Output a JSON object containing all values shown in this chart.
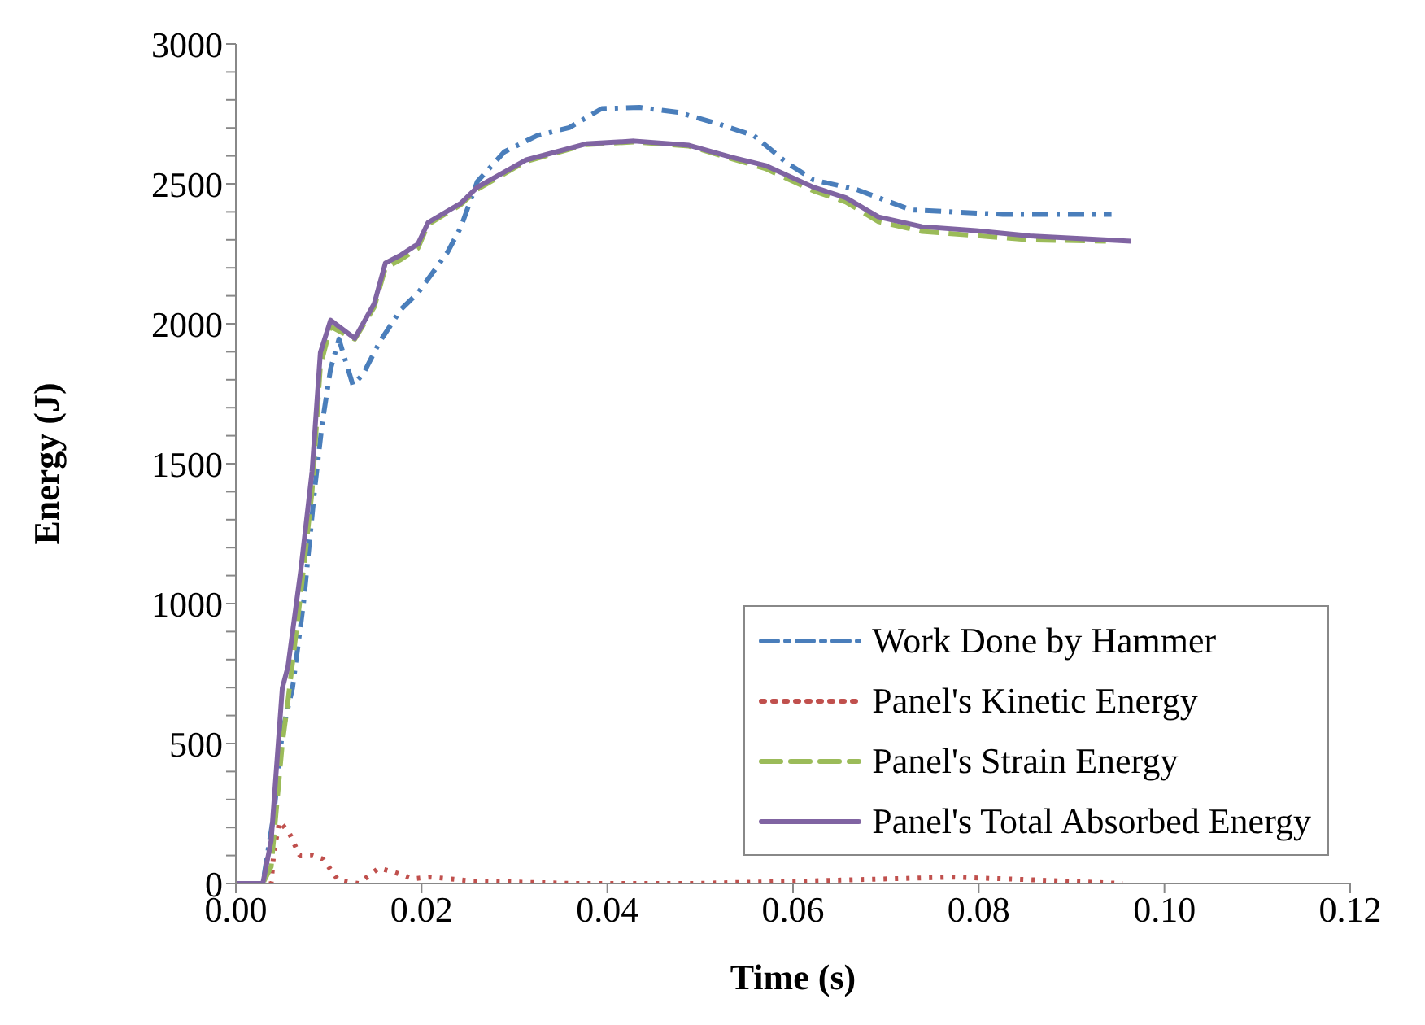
{
  "chart_data": {
    "type": "line",
    "xlabel": "Time (s)",
    "ylabel": "Energy (J)",
    "xlim": [
      0,
      0.12
    ],
    "xticks": [
      {
        "value": 0,
        "label": "0.00"
      },
      {
        "value": 0.02,
        "label": "0.02"
      },
      {
        "value": 0.04,
        "label": "0.04"
      },
      {
        "value": 0.06,
        "label": "0.06"
      },
      {
        "value": 0.08,
        "label": "0.08"
      },
      {
        "value": 0.1,
        "label": "0.10"
      },
      {
        "value": 0.12,
        "label": "0.12"
      }
    ],
    "ylim": [
      0,
      3000
    ],
    "yticks": [
      0,
      {
        "value": 100,
        "label": null
      },
      {
        "value": 200,
        "label": null
      },
      {
        "value": 300,
        "label": null
      },
      {
        "value": 400,
        "label": null
      },
      500,
      {
        "value": 600,
        "label": null
      },
      {
        "value": 700,
        "label": null
      },
      {
        "value": 800,
        "label": null
      },
      {
        "value": 900,
        "label": null
      },
      1000,
      {
        "value": 1100,
        "label": null
      },
      {
        "value": 1200,
        "label": null
      },
      {
        "value": 1300,
        "label": null
      },
      {
        "value": 1400,
        "label": null
      },
      1500,
      {
        "value": 1600,
        "label": null
      },
      {
        "value": 1700,
        "label": null
      },
      {
        "value": 1800,
        "label": null
      },
      {
        "value": 1900,
        "label": null
      },
      2000,
      {
        "value": 2100,
        "label": null
      },
      {
        "value": 2200,
        "label": null
      },
      {
        "value": 2300,
        "label": null
      },
      {
        "value": 2400,
        "label": null
      },
      2500,
      {
        "value": 2600,
        "label": null
      },
      {
        "value": 2700,
        "label": null
      },
      {
        "value": 2800,
        "label": null
      },
      {
        "value": 2900,
        "label": null
      },
      3000
    ],
    "grid": false,
    "legend": "bottom right",
    "marker": "none",
    "series": [
      {
        "name": "Work Done by Hammer",
        "color": "#4a7ebb",
        "line_style": "dashdot",
        "x": [
          0,
          0.0029,
          0.0041,
          0.005,
          0.0061,
          0.0073,
          0.0085,
          0.0093,
          0.0102,
          0.0111,
          0.0126,
          0.0137,
          0.0155,
          0.0178,
          0.0196,
          0.0228,
          0.0242,
          0.026,
          0.0289,
          0.0324,
          0.0359,
          0.0394,
          0.0435,
          0.0476,
          0.0523,
          0.0558,
          0.0593,
          0.0622,
          0.0669,
          0.0727,
          0.0826,
          0.0943
        ],
        "values": [
          0,
          0,
          250,
          541,
          698,
          1006,
          1413,
          1645,
          1839,
          1945,
          1781,
          1820,
          1936,
          2052,
          2110,
          2256,
          2343,
          2508,
          2614,
          2672,
          2701,
          2769,
          2773,
          2756,
          2711,
          2672,
          2576,
          2514,
          2479,
          2407,
          2391,
          2391
        ]
      },
      {
        "name": "Panel's Kinetic Energy",
        "color": "#c0504d",
        "line_style": "dotted",
        "x": [
          0,
          0.0038,
          0.0041,
          0.0047,
          0.0057,
          0.0063,
          0.0069,
          0.0082,
          0.0094,
          0.011,
          0.0132,
          0.0154,
          0.017,
          0.0191,
          0.021,
          0.0254,
          0.0366,
          0.049,
          0.0617,
          0.0773,
          0.0867,
          0.0955
        ],
        "values": [
          0,
          0,
          116,
          221,
          184,
          140,
          99,
          100,
          87,
          13,
          0,
          55,
          41,
          17,
          23,
          9,
          0,
          0,
          9,
          23,
          12,
          0
        ]
      },
      {
        "name": "Panel's Strain Energy",
        "color": "#9bbb59",
        "line_style": "dashed",
        "x": [
          0,
          0.0029,
          0.0038,
          0.005,
          0.0056,
          0.007,
          0.0082,
          0.0091,
          0.0102,
          0.0128,
          0.0149,
          0.0161,
          0.0178,
          0.0196,
          0.0207,
          0.0242,
          0.026,
          0.0312,
          0.0377,
          0.0429,
          0.0488,
          0.0534,
          0.057,
          0.0622,
          0.0657,
          0.0692,
          0.0739,
          0.0797,
          0.0855,
          0.0937
        ],
        "values": [
          0,
          0,
          60,
          500,
          650,
          1040,
          1400,
          1850,
          1990,
          1945,
          2060,
          2200,
          2230,
          2270,
          2355,
          2425,
          2480,
          2580,
          2640,
          2650,
          2635,
          2590,
          2555,
          2475,
          2435,
          2365,
          2330,
          2315,
          2300,
          2295
        ]
      },
      {
        "name": "Panel's Total Absorbed Energy",
        "color": "#8064a2",
        "line_style": "solid",
        "x": [
          0,
          0.0029,
          0.0038,
          0.005,
          0.0056,
          0.007,
          0.0082,
          0.0091,
          0.0102,
          0.0128,
          0.0149,
          0.0161,
          0.0178,
          0.0196,
          0.0207,
          0.0242,
          0.026,
          0.0312,
          0.0377,
          0.0429,
          0.0488,
          0.0534,
          0.057,
          0.0622,
          0.0657,
          0.0692,
          0.0739,
          0.0797,
          0.0855,
          0.0914,
          0.0964
        ],
        "values": [
          0,
          0,
          153,
          698,
          773,
          1122,
          1471,
          1897,
          2013,
          1948,
          2072,
          2217,
          2246,
          2285,
          2362,
          2430,
          2488,
          2585,
          2643,
          2653,
          2638,
          2595,
          2566,
          2488,
          2450,
          2382,
          2347,
          2333,
          2314,
          2304,
          2295
        ]
      }
    ]
  }
}
